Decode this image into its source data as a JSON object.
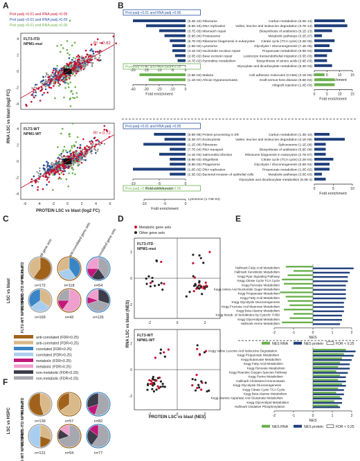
{
  "panels": {
    "A": {
      "letter": "A",
      "legend": [
        {
          "text": "Prot padj <0.01 and RNA padj <0.05",
          "color": "#c8102e"
        },
        {
          "text": "Prot padj <0.01 and RNA padj >0.05",
          "color": "#1f4e9c"
        },
        {
          "text": "Prot padj >0.01 and RNA padj <0.05",
          "color": "#6ab04c"
        }
      ],
      "plots": [
        {
          "label1": "FLT3-ITD",
          "label2": "NPM1-mut",
          "r2": "R² = 0.82"
        },
        {
          "label1": "FLT3-WT",
          "label2": "NPM1-WT",
          "r2": "R² = 0.72"
        }
      ],
      "xlabel": "PROTEIN LSC vs blast (log2 FC)",
      "ylabel": "RNA LSC vs blast (log2 FC)",
      "xticks": [
        "-6",
        "-4",
        "-2",
        "0",
        "2",
        "4",
        "6"
      ],
      "yticks": [
        "4",
        "2",
        "0",
        "-2",
        "-4"
      ]
    },
    "B": {
      "letter": "B",
      "sections": [
        {
          "box": "Prot padj <0.01 and RNA padj >0.05",
          "box_color": "#1f4e9c",
          "left": [
            {
              "label": "(5.4E-43) Ribosome",
              "v": -20
            },
            {
              "label": "(6.9E-15) DNA replication",
              "v": -15
            },
            {
              "label": "(3.7E-05) Mismatch repair",
              "v": -10
            },
            {
              "label": "(5.9E-04) Proteasome",
              "v": -8
            },
            {
              "label": "(6.7E-03) Ribosome biogenesis in eukaryotes",
              "v": -6
            },
            {
              "label": "(1.6E-02) Lysosome",
              "v": -5
            },
            {
              "label": "(3.1E-02) Nucleotide excision repair",
              "v": -5
            },
            {
              "label": "(2.0E-02) Base excision repair",
              "v": -4
            },
            {
              "label": "(4.7E-02) Pyrimidine metabolism",
              "v": -3
            }
          ],
          "left_ticks": [
            "-20",
            "-15",
            "-10",
            "-5",
            "0"
          ],
          "right": [
            {
              "label": "Carbon metabolism (6.0E-13)",
              "v": 12
            },
            {
              "label": "Valine, leucine and isoleucine degradation (3.7E-13)",
              "v": 13
            },
            {
              "label": "Biosynthesis of antibiotics (9.1E-13)",
              "v": 7
            },
            {
              "label": "Metabolic pathways (3.2E-07)",
              "v": 3
            },
            {
              "label": "Citrate cycle (TCA cycle) (3.2E-06)",
              "v": 8
            },
            {
              "label": "Glycolysis / Gluconeogenesis (7.4E-05)",
              "v": 6
            },
            {
              "label": "Propanoate metabolism (9.9E-04)",
              "v": 7
            },
            {
              "label": "Leukocyte transendothelial migration (3.5E-03)",
              "v": 5
            },
            {
              "label": "Biosynthesis of amino acids (3.6E-03)",
              "v": 5
            },
            {
              "label": "Glyoxylate and dicarboxylate metabolism (5.3E-03)",
              "v": 7
            }
          ],
          "right_ticks": [
            "0",
            "5",
            "10",
            "15"
          ]
        },
        {
          "box": "Prot padj >0.01 and RNA padj <0.05",
          "box_color": "#6ab04c",
          "left": [
            {
              "label": "(2.9E-03) Malaria",
              "v": -35
            },
            {
              "label": "(1.1E-02) African trypanosomiasis",
              "v": -28
            }
          ],
          "left_ticks": [
            "-40",
            "-30",
            "-20",
            "-10",
            "0"
          ],
          "right": [
            {
              "label": "Cell adhesion molecules (CAMs) (3.1E-05)",
              "v": 4
            },
            {
              "label": "Graft-versus-host disease (9.6E-04)",
              "v": 8
            },
            {
              "label": "Allograft rejection (1.0E-03)",
              "v": 8
            }
          ],
          "right_ticks": [
            "0",
            "5",
            "10",
            "15"
          ]
        },
        {
          "box": "Prot padj <0.01 and RNA padj >0.05",
          "box_color": "#1f4e9c",
          "left": [
            {
              "label": "(8.9E-08) Protein processing in ER",
              "v": -6
            },
            {
              "label": "(5.3E-07) Endocytosis",
              "v": -4
            },
            {
              "label": "(1.1E-06) Ribosome",
              "v": -8
            },
            {
              "label": "(7.7E-04) RNA transport",
              "v": -3
            },
            {
              "label": "(4.1E-03) Salmonella infection",
              "v": -5
            },
            {
              "label": "(6.8E-03) Shigellosis",
              "v": -3
            },
            {
              "label": "(8.8E-03) Phagosome",
              "v": -3
            },
            {
              "label": "(1.0E-02) DNA replication",
              "v": -10
            },
            {
              "label": "(2.3E-02) Bacterial invasion of epithelial cells",
              "v": -3
            }
          ],
          "left_ticks": [
            "-10",
            "-5",
            "0"
          ],
          "right": [
            {
              "label": "Carbon metabolism (1.3E-10)",
              "v": 4
            },
            {
              "label": "Valine, leucine and isoleucine degradation (3.1E-09)",
              "v": 8
            },
            {
              "label": "Spliceosome (1.1E-08)",
              "v": 3
            },
            {
              "label": "Biosynthesis of antibiotics (5.6E-08)",
              "v": 3
            },
            {
              "label": "Ribosome biogenesis in eukaryotes (2.7E-07)",
              "v": 3
            },
            {
              "label": "Citrate cycle (TCA cycle) (2.2E-04)",
              "v": 5
            },
            {
              "label": "Glycolysis / Gluconeogenesis (5.6E-04)",
              "v": 4
            },
            {
              "label": "Propanoate metabolism (1.0E-02)",
              "v": 4
            },
            {
              "label": "Metabolic pathways (3.0E-03)",
              "v": 2
            },
            {
              "label": "Glyoxylate and dicarboxylate metabolism (6.0E-3)",
              "v": 3
            }
          ],
          "right_ticks": [
            "0",
            "5",
            "10"
          ]
        },
        {
          "box": "Prot padj >0.01 and RNA padj <0.05",
          "box_color": "#6ab04c",
          "left": [],
          "left_ticks": [
            "-10",
            "-5",
            "0"
          ],
          "right": [
            {
              "label": "Lysosome (1.74E-04)",
              "v": 0
            }
          ],
          "right_ticks": []
        }
      ],
      "xlabel": "Fold enrichment"
    },
    "C": {
      "letter": "C",
      "col_headers": [
        "All gene sets",
        "anti-correlated gene sets",
        "correlated gene sets"
      ],
      "row_title": "LSC vs blast",
      "rows": [
        {
          "label": "FLT3-ITD NPM1-mut",
          "ns": [
            "n=172",
            "n=118",
            "n=54"
          ]
        },
        {
          "label": "FLT3-WT NPM1-WT",
          "ns": [
            "n=169",
            "n=43",
            "n=126"
          ]
        }
      ],
      "legend": [
        {
          "text": "anti-correlated (FDR<0.25)",
          "color": "#a0621a"
        },
        {
          "text": "anti-correlated (FDR>0.25)",
          "color": "#d9b98a"
        },
        {
          "text": "correlated (FDR<0.25)",
          "color": "#3a85c6"
        },
        {
          "text": "correlated (FDR>0.25)",
          "color": "#a9cdee"
        },
        {
          "text": "metabolic (FDR<0.25)",
          "color": "#c2187b"
        },
        {
          "text": "metabolic (FDR>0.25)",
          "color": "#ef9fcd"
        },
        {
          "text": "non-metabolic (FDR<0.25)",
          "color": "#3c3c4a"
        },
        {
          "text": "non-metabolic (FDR>0.25)",
          "color": "#a7a7b0"
        }
      ]
    },
    "F": {
      "letter": "F",
      "row_title": "LSC vs HSPC",
      "rows": [
        {
          "label": "FLT3-ITD NPM1-mut",
          "ns": [
            "n=139",
            "n=57",
            "n=82"
          ]
        },
        {
          "label": "FLT3-WT NPM1-WT",
          "ns": [
            "n=131",
            "n=54",
            "n=77"
          ]
        }
      ]
    },
    "D": {
      "letter": "D",
      "legend": [
        {
          "text": "Metabolic gene sets",
          "color": "#c8102e"
        },
        {
          "text": "Other gene sets",
          "color": "#222222"
        }
      ],
      "plots": [
        {
          "label1": "FLT3-ITD",
          "label2": "NPM1-mut"
        },
        {
          "label1": "FLT3-WT",
          "label2": "NPM1-WT"
        }
      ],
      "xlabel": "PROTEIN LSC vs blast (NES)",
      "ylabel": "RNA LSC vs blast (NES)",
      "xticks": [
        "-2",
        "0",
        "2"
      ],
      "yticks": [
        "2",
        "0",
        "-2"
      ]
    },
    "E": {
      "letter": "E",
      "groups": [
        {
          "rows": [
            {
              "label": "Hallmark Fatty Acid Metabolism",
              "rna": -1.4,
              "prot": 2.1
            },
            {
              "label": "Hallmark Xenobiotic Metabolism",
              "rna": -1.0,
              "prot": 1.9
            },
            {
              "label": "Kegg Ppar Signaling Pathway",
              "rna": -1.3,
              "prot": 1.8
            },
            {
              "label": "Kegg Citrate Cycle TCA Cycle",
              "rna": -1.6,
              "prot": 1.8
            },
            {
              "label": "Kegg Pyruvate Metabolism",
              "rna": -1.5,
              "prot": 1.7
            },
            {
              "label": "Kegg Amino And Nucleotide Sugar Metabolism",
              "rna": -1.1,
              "prot": 1.7
            },
            {
              "label": "Kegg Propanoate Metabolism",
              "rna": -1.7,
              "prot": 1.7
            },
            {
              "label": "Kegg Fatty Acid Metabolism",
              "rna": -1.4,
              "prot": 1.7
            },
            {
              "label": "Kegg Glycolysis Gluconeogenesis",
              "rna": -1.3,
              "prot": 1.6
            },
            {
              "label": "Kegg Fructose And Mannose Metabolism",
              "rna": -1.2,
              "prot": 1.6
            },
            {
              "label": "Kegg Beta Alanine Metabolism",
              "rna": -1.5,
              "prot": 1.6
            },
            {
              "label": "Kegg Metab. of Xenobiotics by Cytochr. P450",
              "rna": -1.0,
              "prot": 1.5
            },
            {
              "label": "Kegg Glycerolipid Metabolism",
              "rna": -1.2,
              "prot": 1.5
            },
            {
              "label": "Hallmark Heme Metabolism",
              "rna": -1.6,
              "prot": 1.4
            }
          ],
          "legend": [
            "NES RNA",
            "NES protein",
            "FDR < 0.25"
          ]
        },
        {
          "rows": [
            {
              "label": "Kegg Valine Leucine And Isoleucine Degradation",
              "rna": 1.7,
              "prot": 2.2
            },
            {
              "label": "Kegg Propanoate Metabolism",
              "rna": 1.6,
              "prot": 2.1
            },
            {
              "label": "Kegg Butanoate Metabolism",
              "rna": 1.5,
              "prot": 2.0
            },
            {
              "label": "Kegg Fatty Acid Metabolism",
              "rna": 1.4,
              "prot": 1.9
            },
            {
              "label": "Kegg Pyruvate Metabolism",
              "rna": 1.3,
              "prot": 1.9
            },
            {
              "label": "Kegg Reactive Oxygen Species Pathway",
              "rna": 1.2,
              "prot": 1.8
            },
            {
              "label": "Kegg Purine Metabolism",
              "rna": 1.4,
              "prot": 1.7
            },
            {
              "label": "Hallmark Cholesterol Homeostasis",
              "rna": 1.3,
              "prot": 1.7
            },
            {
              "label": "Kegg Glycolysis Gluconeogenesis",
              "rna": 1.5,
              "prot": 1.7
            },
            {
              "label": "Kegg Citrate Cycle TCA Cycle",
              "rna": 1.3,
              "prot": 1.6
            },
            {
              "label": "Kegg Beta Alanine Metabolism",
              "rna": 1.2,
              "prot": 1.6
            },
            {
              "label": "Kegg Alanine Aspartate And Glutamate Metabolism",
              "rna": 1.4,
              "prot": 1.5
            },
            {
              "label": "Kegg Glycerolipid Metabolism",
              "rna": 1.1,
              "prot": 1.5
            },
            {
              "label": "Hallmark Oxidative Phosphorylation",
              "rna": 1.3,
              "prot": 1.4
            }
          ],
          "legend": [
            "NES RNA",
            "NES protein",
            "FDR < 0.25"
          ]
        }
      ],
      "xlabel": "NES",
      "xticks": [
        "-2",
        "-1",
        "0",
        "1",
        "2"
      ]
    }
  },
  "chart_data": [
    {
      "type": "bar",
      "panel": "E-top",
      "xlabel": "NES",
      "series": [
        {
          "name": "NES RNA"
        },
        {
          "name": "NES protein"
        }
      ],
      "categories": [
        "Hallmark Fatty Acid Metabolism",
        "Hallmark Xenobiotic Metabolism",
        "Kegg Ppar Signaling Pathway",
        "Kegg Citrate Cycle TCA Cycle",
        "Kegg Pyruvate Metabolism",
        "Kegg Amino And Nucleotide Sugar Metabolism",
        "Kegg Propanoate Metabolism",
        "Kegg Fatty Acid Metabolism",
        "Kegg Glycolysis Gluconeogenesis",
        "Kegg Fructose And Mannose Metabolism",
        "Kegg Beta Alanine Metabolism",
        "Kegg Metab. of Xenobiotics by Cytochr. P450",
        "Kegg Glycerolipid Metabolism",
        "Hallmark Heme Metabolism"
      ]
    },
    {
      "type": "bar",
      "panel": "E-bottom",
      "xlabel": "NES",
      "series": [
        {
          "name": "NES RNA"
        },
        {
          "name": "NES protein"
        }
      ]
    }
  ]
}
